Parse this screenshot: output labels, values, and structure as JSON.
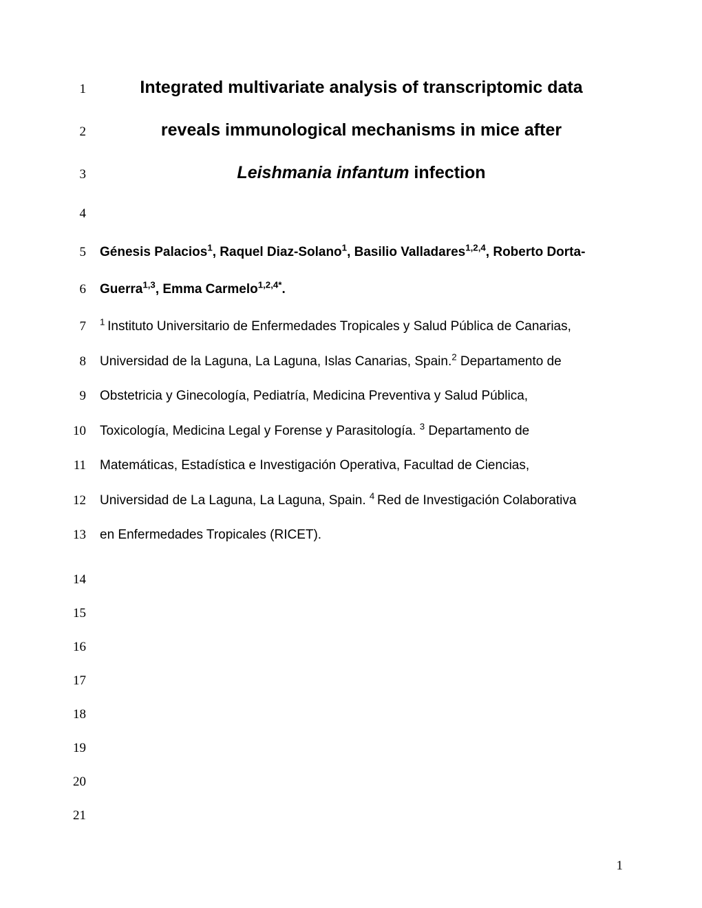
{
  "title": {
    "line1": "Integrated multivariate analysis of transcriptomic data",
    "line2": "reveals immunological mechanisms in mice after",
    "line3_italic": "Leishmania infantum",
    "line3_rest": " infection"
  },
  "authors": {
    "a1_name": "Génesis Palacios",
    "a1_sup": "1",
    "sep1": ", ",
    "a2_name": "Raquel Diaz-Solano",
    "a2_sup": "1",
    "sep2": ", ",
    "a3_name": "Basilio Valladares",
    "a3_sup": "1,2,4",
    "sep3": ", ",
    "a4_name": "Roberto Dorta-",
    "a4_cont": "Guerra",
    "a4_sup": "1,3",
    "sep4": ", ",
    "a5_name": "Emma Carmelo",
    "a5_sup": "1,2,4*",
    "period": "."
  },
  "affiliations": {
    "l1_sup": "1 ",
    "l1_text": "Instituto Universitario de Enfermedades Tropicales y Salud Pública de Canarias,",
    "l2_text": "Universidad de la Laguna, La Laguna, Islas Canarias, Spain.",
    "l2_sup": "2",
    "l2_text2": " Departamento de",
    "l3_text": "Obstetricia y Ginecología, Pediatría, Medicina Preventiva y Salud Pública,",
    "l4_text": "Toxicología, Medicina Legal y Forense y Parasitología. ",
    "l4_sup": "3",
    "l4_text2": " Departamento de",
    "l5_text": "Matemáticas, Estadística e Investigación Operativa, Facultad de Ciencias,",
    "l6_text": "Universidad de La Laguna, La Laguna, Spain. ",
    "l6_sup": "4 ",
    "l6_text2": "Red de Investigación Colaborativa",
    "l7_text": "en Enfermedades Tropicales (RICET)."
  },
  "line_numbers": {
    "n1": "1",
    "n2": "2",
    "n3": "3",
    "n4": "4",
    "n5": "5",
    "n6": "6",
    "n7": "7",
    "n8": "8",
    "n9": "9",
    "n10": "10",
    "n11": "11",
    "n12": "12",
    "n13": "13",
    "n14": "14",
    "n15": "15",
    "n16": "16",
    "n17": "17",
    "n18": "18",
    "n19": "19",
    "n20": "20",
    "n21": "21"
  },
  "page_number": "1"
}
